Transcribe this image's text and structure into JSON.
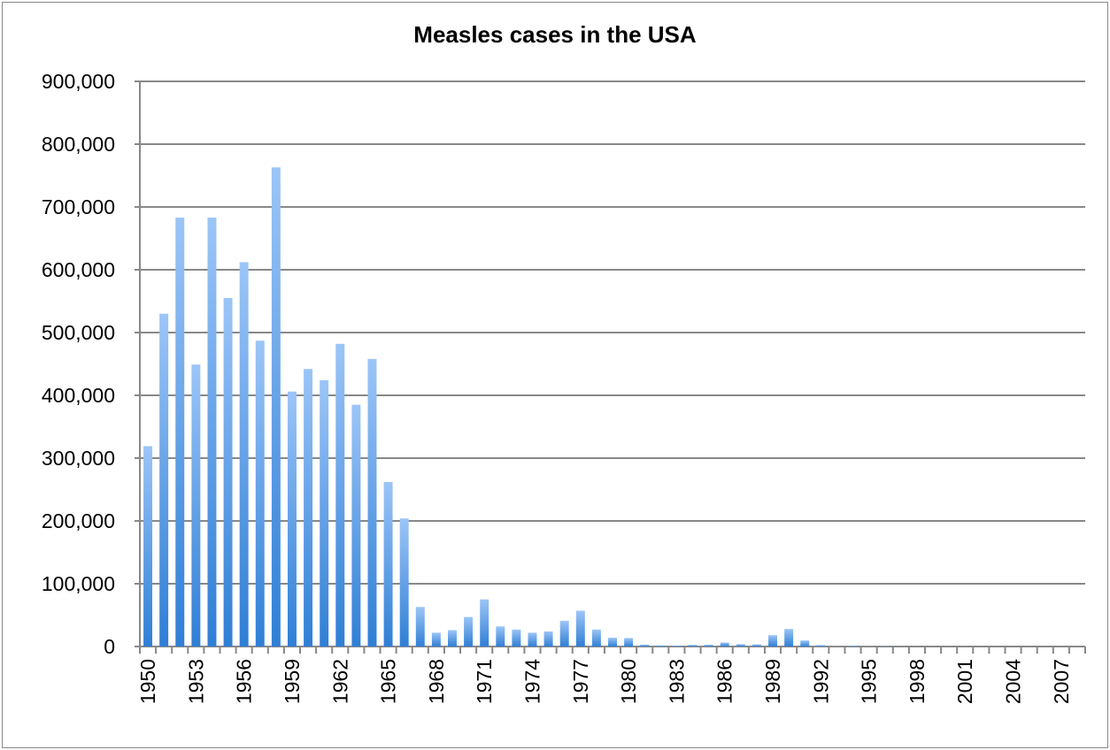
{
  "chart_data": {
    "type": "bar",
    "title": "Measles cases in the USA",
    "xlabel": "",
    "ylabel": "",
    "ylim": [
      0,
      900000
    ],
    "yticks": [
      "0",
      "100,000",
      "200,000",
      "300,000",
      "400,000",
      "500,000",
      "600,000",
      "700,000",
      "800,000",
      "900,000"
    ],
    "grid": true,
    "bar_color": "#4a90e2",
    "categories": [
      1950,
      1951,
      1952,
      1953,
      1954,
      1955,
      1956,
      1957,
      1958,
      1959,
      1960,
      1961,
      1962,
      1963,
      1964,
      1965,
      1966,
      1967,
      1968,
      1969,
      1970,
      1971,
      1972,
      1973,
      1974,
      1975,
      1976,
      1977,
      1978,
      1979,
      1980,
      1981,
      1982,
      1983,
      1984,
      1985,
      1986,
      1987,
      1988,
      1989,
      1990,
      1991,
      1992,
      1993,
      1994,
      1995,
      1996,
      1997,
      1998,
      1999,
      2000,
      2001,
      2002,
      2003,
      2004,
      2005,
      2006,
      2007,
      2008
    ],
    "xtick_labels": [
      "1950",
      "1953",
      "1956",
      "1959",
      "1962",
      "1965",
      "1968",
      "1971",
      "1974",
      "1977",
      "1980",
      "1983",
      "1986",
      "1989",
      "1992",
      "1995",
      "1998",
      "2001",
      "2004",
      "2007"
    ],
    "values": [
      319000,
      530000,
      683000,
      449000,
      683000,
      555000,
      612000,
      487000,
      763000,
      406000,
      442000,
      424000,
      482000,
      385000,
      458000,
      262000,
      204000,
      63000,
      22000,
      26000,
      47000,
      75000,
      32000,
      27000,
      22000,
      24000,
      41000,
      57000,
      27000,
      14000,
      13500,
      3000,
      1700,
      1500,
      2600,
      2800,
      6300,
      3700,
      3400,
      18000,
      28000,
      9600,
      2200,
      312,
      963,
      309,
      508,
      138,
      100,
      100,
      86,
      116,
      44,
      56,
      37,
      66,
      55,
      43,
      140
    ]
  }
}
